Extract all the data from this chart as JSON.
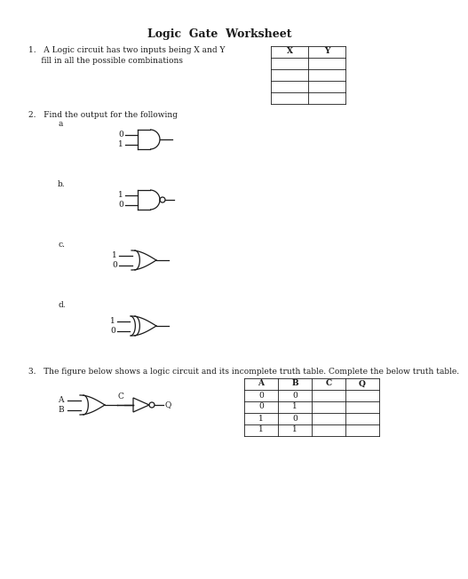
{
  "title": "Logic  Gate  Worksheet",
  "q1_line1": "1.   A Logic circuit has two inputs being X and Y",
  "q1_line2": "     fill in all the possible combinations",
  "q2_text": "2.   Find the output for the following",
  "q3_text": "3.   The figure below shows a logic circuit and its incomplete truth table. Complete the below truth table.",
  "table1_headers": [
    "X",
    "Y"
  ],
  "table2_headers": [
    "A",
    "B",
    "C",
    "Q"
  ],
  "table2_data": [
    [
      "0",
      "0",
      "",
      ""
    ],
    [
      "0",
      "1",
      "",
      ""
    ],
    [
      "1",
      "0",
      "",
      ""
    ],
    [
      "1",
      "1",
      "",
      ""
    ]
  ],
  "bg_color": "#ffffff",
  "line_color": "#1a1a1a",
  "text_color": "#1a1a1a",
  "font_size": 6.5,
  "title_font_size": 9
}
